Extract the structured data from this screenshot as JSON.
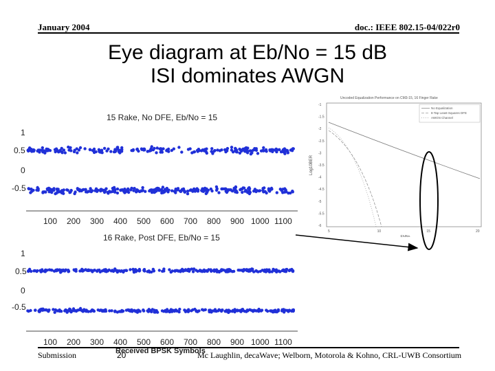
{
  "header": {
    "date": "January 2004",
    "doc_id": "doc.: IEEE 802.15-04/022r0"
  },
  "slide": {
    "title_line1": "Eye diagram at Eb/No = 15 dB",
    "title_line2": "ISI dominates AWGN"
  },
  "plots": {
    "top": {
      "title": "15 Rake, No DFE, Eb/No = 15",
      "y_ticks": [
        "1",
        "0.5",
        "0",
        "-0.5"
      ]
    },
    "bottom": {
      "title": "16 Rake, Post DFE, Eb/No = 15",
      "y_ticks": [
        "1",
        "0.5",
        "0",
        "-0.5"
      ],
      "xlabel": "Received BPSK Symbols"
    },
    "x_ticks": [
      "100",
      "200",
      "300",
      "400",
      "500",
      "600",
      "700",
      "800",
      "900",
      "1000",
      "1100"
    ]
  },
  "ber_chart": {
    "title": "Uncoded Equalization Performance on CM3-15, 16 Finger Rake",
    "ylabel": "Log10BER",
    "xlabel": "Eb/No",
    "y_ticks": [
      "-1",
      "-1.5",
      "-2",
      "-2.5",
      "-3",
      "-3.5",
      "-4",
      "-4.5",
      "-5",
      "-5.5",
      "-6"
    ],
    "x_ticks": [
      "5",
      "10",
      "15",
      "20"
    ],
    "legend": [
      "No Equalization",
      "8-Tap Least-Squares DFE",
      "AWGN Channel"
    ]
  },
  "footer": {
    "left": "Submission",
    "page": "20",
    "right": "Mc Laughlin, decaWave; Welborn, Motorola & Kohno, CRL-UWB Consortium"
  },
  "colors": {
    "dots": "#2030d8",
    "highlight": "#000000"
  }
}
